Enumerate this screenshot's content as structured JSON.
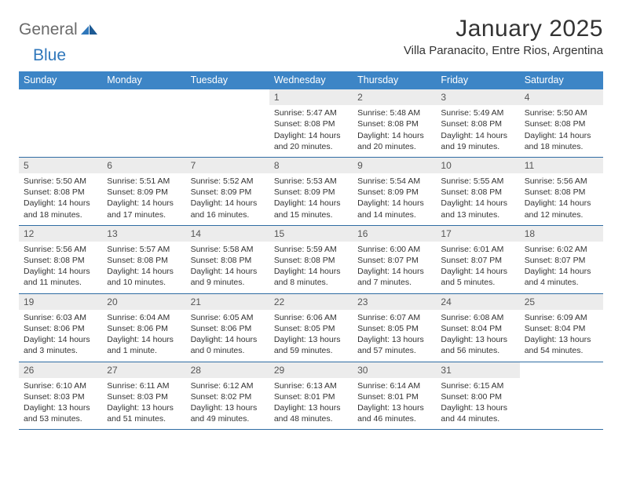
{
  "brand": {
    "part1": "General",
    "part2": "Blue"
  },
  "title": "January 2025",
  "location": "Villa Paranacito, Entre Rios, Argentina",
  "styling": {
    "background": "#ffffff",
    "header_bg": "#3d85c6",
    "header_text": "#ffffff",
    "daynum_bg": "#ececec",
    "row_border": "#2f6ca3",
    "body_text": "#333333",
    "logo_gray": "#6a6a6a",
    "logo_blue": "#2f77bb",
    "title_fontsize": 30,
    "location_fontsize": 15,
    "weekday_fontsize": 12.5,
    "daynum_fontsize": 12,
    "body_fontsize": 10.5
  },
  "weekdays": [
    "Sunday",
    "Monday",
    "Tuesday",
    "Wednesday",
    "Thursday",
    "Friday",
    "Saturday"
  ],
  "weeks": [
    [
      null,
      null,
      null,
      {
        "n": "1",
        "sunrise": "5:47 AM",
        "sunset": "8:08 PM",
        "daylight": "14 hours and 20 minutes."
      },
      {
        "n": "2",
        "sunrise": "5:48 AM",
        "sunset": "8:08 PM",
        "daylight": "14 hours and 20 minutes."
      },
      {
        "n": "3",
        "sunrise": "5:49 AM",
        "sunset": "8:08 PM",
        "daylight": "14 hours and 19 minutes."
      },
      {
        "n": "4",
        "sunrise": "5:50 AM",
        "sunset": "8:08 PM",
        "daylight": "14 hours and 18 minutes."
      }
    ],
    [
      {
        "n": "5",
        "sunrise": "5:50 AM",
        "sunset": "8:08 PM",
        "daylight": "14 hours and 18 minutes."
      },
      {
        "n": "6",
        "sunrise": "5:51 AM",
        "sunset": "8:09 PM",
        "daylight": "14 hours and 17 minutes."
      },
      {
        "n": "7",
        "sunrise": "5:52 AM",
        "sunset": "8:09 PM",
        "daylight": "14 hours and 16 minutes."
      },
      {
        "n": "8",
        "sunrise": "5:53 AM",
        "sunset": "8:09 PM",
        "daylight": "14 hours and 15 minutes."
      },
      {
        "n": "9",
        "sunrise": "5:54 AM",
        "sunset": "8:09 PM",
        "daylight": "14 hours and 14 minutes."
      },
      {
        "n": "10",
        "sunrise": "5:55 AM",
        "sunset": "8:08 PM",
        "daylight": "14 hours and 13 minutes."
      },
      {
        "n": "11",
        "sunrise": "5:56 AM",
        "sunset": "8:08 PM",
        "daylight": "14 hours and 12 minutes."
      }
    ],
    [
      {
        "n": "12",
        "sunrise": "5:56 AM",
        "sunset": "8:08 PM",
        "daylight": "14 hours and 11 minutes."
      },
      {
        "n": "13",
        "sunrise": "5:57 AM",
        "sunset": "8:08 PM",
        "daylight": "14 hours and 10 minutes."
      },
      {
        "n": "14",
        "sunrise": "5:58 AM",
        "sunset": "8:08 PM",
        "daylight": "14 hours and 9 minutes."
      },
      {
        "n": "15",
        "sunrise": "5:59 AM",
        "sunset": "8:08 PM",
        "daylight": "14 hours and 8 minutes."
      },
      {
        "n": "16",
        "sunrise": "6:00 AM",
        "sunset": "8:07 PM",
        "daylight": "14 hours and 7 minutes."
      },
      {
        "n": "17",
        "sunrise": "6:01 AM",
        "sunset": "8:07 PM",
        "daylight": "14 hours and 5 minutes."
      },
      {
        "n": "18",
        "sunrise": "6:02 AM",
        "sunset": "8:07 PM",
        "daylight": "14 hours and 4 minutes."
      }
    ],
    [
      {
        "n": "19",
        "sunrise": "6:03 AM",
        "sunset": "8:06 PM",
        "daylight": "14 hours and 3 minutes."
      },
      {
        "n": "20",
        "sunrise": "6:04 AM",
        "sunset": "8:06 PM",
        "daylight": "14 hours and 1 minute."
      },
      {
        "n": "21",
        "sunrise": "6:05 AM",
        "sunset": "8:06 PM",
        "daylight": "14 hours and 0 minutes."
      },
      {
        "n": "22",
        "sunrise": "6:06 AM",
        "sunset": "8:05 PM",
        "daylight": "13 hours and 59 minutes."
      },
      {
        "n": "23",
        "sunrise": "6:07 AM",
        "sunset": "8:05 PM",
        "daylight": "13 hours and 57 minutes."
      },
      {
        "n": "24",
        "sunrise": "6:08 AM",
        "sunset": "8:04 PM",
        "daylight": "13 hours and 56 minutes."
      },
      {
        "n": "25",
        "sunrise": "6:09 AM",
        "sunset": "8:04 PM",
        "daylight": "13 hours and 54 minutes."
      }
    ],
    [
      {
        "n": "26",
        "sunrise": "6:10 AM",
        "sunset": "8:03 PM",
        "daylight": "13 hours and 53 minutes."
      },
      {
        "n": "27",
        "sunrise": "6:11 AM",
        "sunset": "8:03 PM",
        "daylight": "13 hours and 51 minutes."
      },
      {
        "n": "28",
        "sunrise": "6:12 AM",
        "sunset": "8:02 PM",
        "daylight": "13 hours and 49 minutes."
      },
      {
        "n": "29",
        "sunrise": "6:13 AM",
        "sunset": "8:01 PM",
        "daylight": "13 hours and 48 minutes."
      },
      {
        "n": "30",
        "sunrise": "6:14 AM",
        "sunset": "8:01 PM",
        "daylight": "13 hours and 46 minutes."
      },
      {
        "n": "31",
        "sunrise": "6:15 AM",
        "sunset": "8:00 PM",
        "daylight": "13 hours and 44 minutes."
      },
      null
    ]
  ],
  "labels": {
    "sunrise": "Sunrise:",
    "sunset": "Sunset:",
    "daylight": "Daylight:"
  }
}
